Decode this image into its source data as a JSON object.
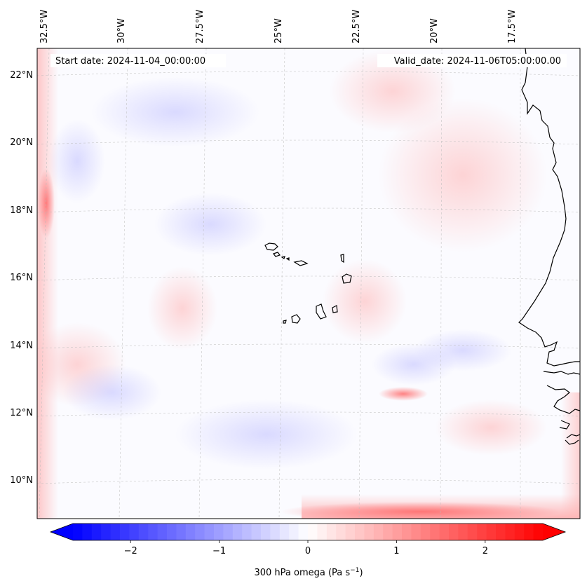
{
  "map": {
    "start_date": "Start date: 2024-11-04_00:00:00",
    "valid_date": "Valid_date: 2024-11-06T05:00:00.00",
    "lon_labels": [
      "32.5°W",
      "30°W",
      "27.5°W",
      "25°W",
      "22.5°W",
      "20°W",
      "17.5°W"
    ],
    "lat_labels": [
      "22°N",
      "20°N",
      "18°N",
      "16°N",
      "14°N",
      "12°N",
      "10°N"
    ]
  },
  "colorbar": {
    "ticks": [
      "−2",
      "−1",
      "0",
      "1",
      "2"
    ],
    "tick_values": [
      -2,
      -1,
      0,
      1,
      2
    ],
    "range": [
      -2.65,
      2.65
    ],
    "label": "300 hPa omega (Pa s",
    "label_exp": "−1",
    "label_end": ")",
    "colors": {
      "low": "#0000ff",
      "mid": "#ffffff",
      "high": "#ff0000"
    }
  }
}
